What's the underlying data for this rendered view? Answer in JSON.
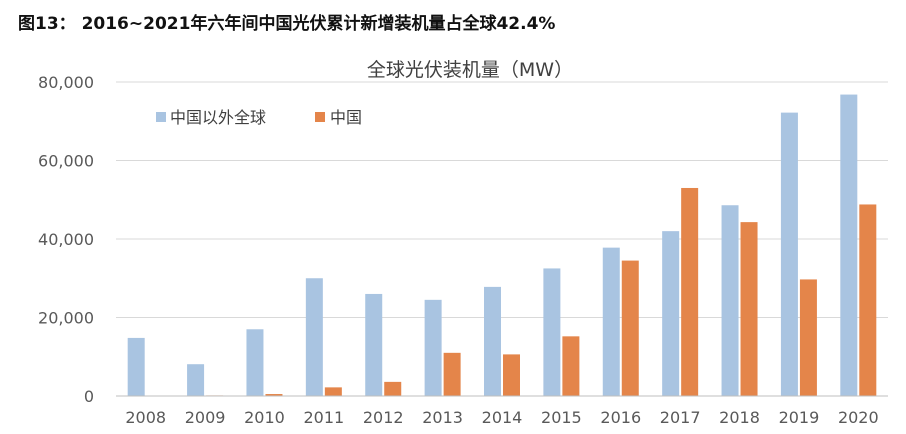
{
  "figure_title": "图13： 2016~2021年六年间中国光伏累计新增装机量占全球42.4%",
  "colors": {
    "rest_of_world": "#A9C4E1",
    "china": "#E4854A",
    "grid": "#D9D9D9",
    "axis": "#BFBFBF"
  },
  "chart_data": {
    "type": "bar",
    "title": "全球光伏装机量（MW）",
    "xlabel": "",
    "ylabel": "",
    "ylim": [
      0,
      80000
    ],
    "yticks": [
      0,
      20000,
      40000,
      60000,
      80000
    ],
    "ytick_labels": [
      "0",
      "20,000",
      "40,000",
      "60,000",
      "80,000"
    ],
    "grid": true,
    "legend_position": "top-left",
    "categories": [
      "2008",
      "2009",
      "2010",
      "2011",
      "2012",
      "2013",
      "2014",
      "2015",
      "2016",
      "2017",
      "2018",
      "2019",
      "2020"
    ],
    "series": [
      {
        "name": "中国以外全球",
        "values": [
          14800,
          8100,
          17000,
          30000,
          26000,
          24500,
          27800,
          32500,
          37800,
          42000,
          48600,
          72200,
          76800
        ]
      },
      {
        "name": "中国",
        "values": [
          50,
          150,
          500,
          2200,
          3600,
          11000,
          10600,
          15200,
          34500,
          53000,
          44300,
          29700,
          48800
        ]
      }
    ]
  }
}
